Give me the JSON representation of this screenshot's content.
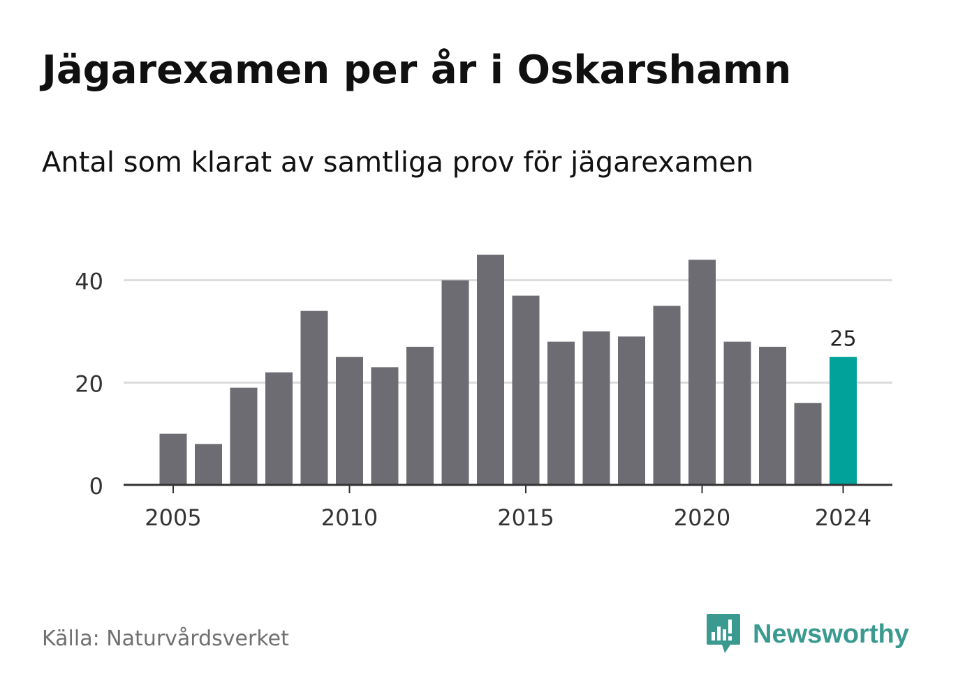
{
  "header": {
    "title": "Jägarexamen per år i Oskarshamn",
    "subtitle": "Antal som klarat av samtliga prov för jägarexamen"
  },
  "footer": {
    "source": "Källa: Naturvårdsverket",
    "brand": "Newsworthy",
    "brand_icon": "newsworthy-logo-icon",
    "brand_color": "#3a9a8f"
  },
  "chart_data": {
    "type": "bar",
    "categories": [
      2005,
      2006,
      2007,
      2008,
      2009,
      2010,
      2011,
      2012,
      2013,
      2014,
      2015,
      2016,
      2017,
      2018,
      2019,
      2020,
      2021,
      2022,
      2023,
      2024
    ],
    "values": [
      10,
      8,
      19,
      22,
      34,
      25,
      23,
      27,
      40,
      45,
      37,
      28,
      30,
      29,
      35,
      44,
      28,
      27,
      16,
      25
    ],
    "x_ticks": [
      "2005",
      "2010",
      "2015",
      "2020",
      "2024"
    ],
    "y_ticks": [
      0,
      20,
      40
    ],
    "ylim": [
      0,
      45
    ],
    "grid": true,
    "highlight": {
      "category": 2024,
      "label": "25",
      "color": "#00a29a"
    },
    "bar_color": "#6d6c72",
    "xlabel": "",
    "ylabel": ""
  }
}
